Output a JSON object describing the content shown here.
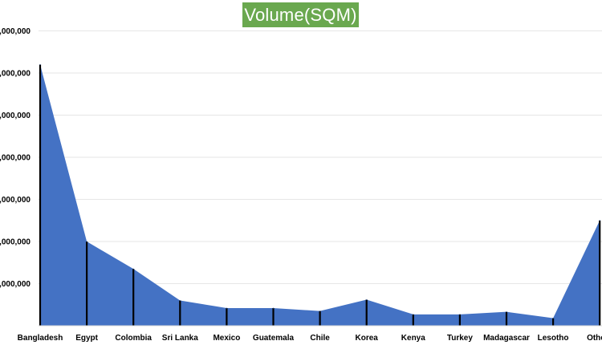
{
  "chart_data": {
    "type": "area",
    "title": "Volume(SQM)",
    "xlabel": "",
    "ylabel": "",
    "categories": [
      "Bangladesh",
      "Egypt",
      "Colombia",
      "Sri Lanka",
      "Mexico",
      "Guatemala",
      "Chile",
      "Korea",
      "Kenya",
      "Turkey",
      "Madagascar",
      "Lesotho",
      "Others"
    ],
    "values": [
      6200000,
      2000000,
      1350000,
      600000,
      420000,
      420000,
      350000,
      620000,
      270000,
      270000,
      330000,
      180000,
      2500000
    ],
    "yticks": [
      "",
      ",000,000",
      ",000,000",
      ",000,000",
      ",000,000",
      ",000,000",
      ",000,000",
      ",000,000"
    ],
    "ylim": [
      0,
      7000000
    ],
    "grid": true,
    "legend": "none",
    "colors": {
      "fill": "#4472c4",
      "drop_lines": "#000000",
      "gridlines": "#e6e6e6",
      "title_background": "#6aa84f",
      "title_text": "#ffffff"
    }
  }
}
